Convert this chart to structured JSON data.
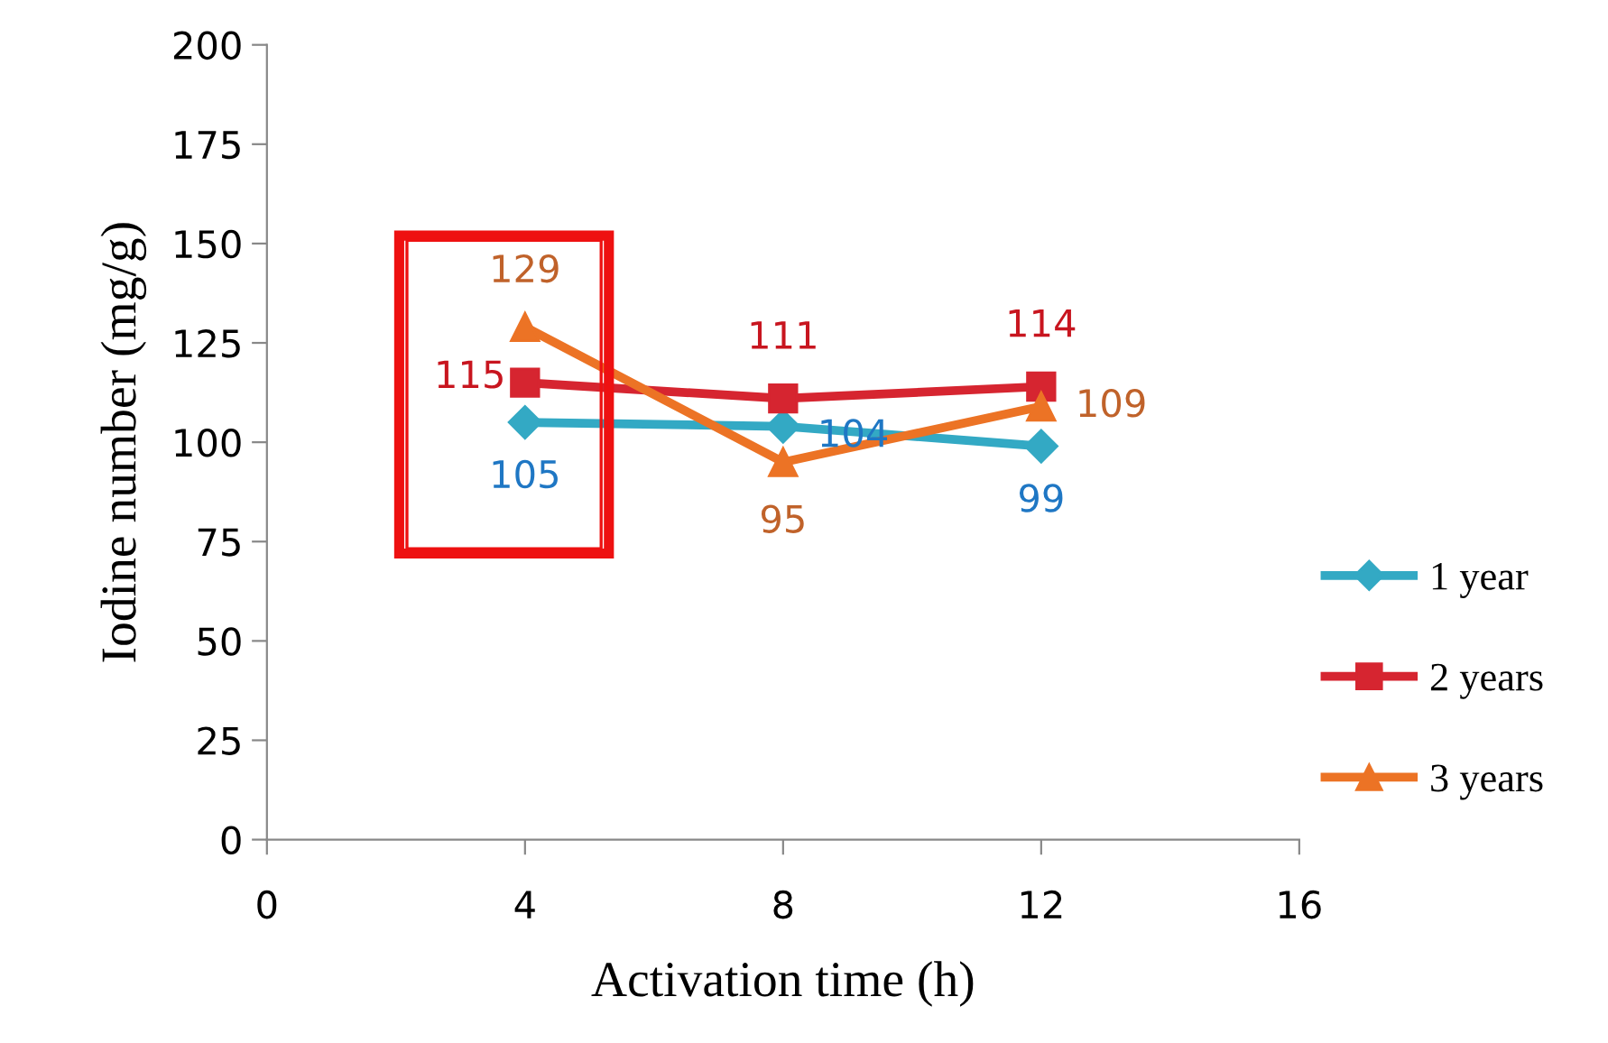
{
  "chart_data": {
    "type": "line",
    "xlabel": "Activation time (h)",
    "ylabel": "Iodine number (mg/g)",
    "x": [
      4,
      8,
      12
    ],
    "series": [
      {
        "name": "1 year",
        "color": "#33a9c4",
        "marker": "diamond",
        "values": [
          105,
          104,
          99
        ],
        "value_labels": [
          "105",
          "104",
          "99"
        ]
      },
      {
        "name": "2 years",
        "color": "#d62530",
        "marker": "square",
        "values": [
          115,
          111,
          114
        ],
        "value_labels": [
          "115",
          "111",
          "114"
        ]
      },
      {
        "name": "3 years",
        "color": "#ec7325",
        "marker": "triangle",
        "values": [
          129,
          95,
          109
        ],
        "value_labels": [
          "129",
          "95",
          "109"
        ]
      }
    ],
    "xlim": [
      0,
      16
    ],
    "xticks": [
      0,
      4,
      8,
      12,
      16
    ],
    "ylim": [
      0,
      200
    ],
    "yticks": [
      0,
      25,
      50,
      75,
      100,
      125,
      150,
      175,
      200
    ],
    "grid": false,
    "legend": "right",
    "line_style": "solid"
  }
}
